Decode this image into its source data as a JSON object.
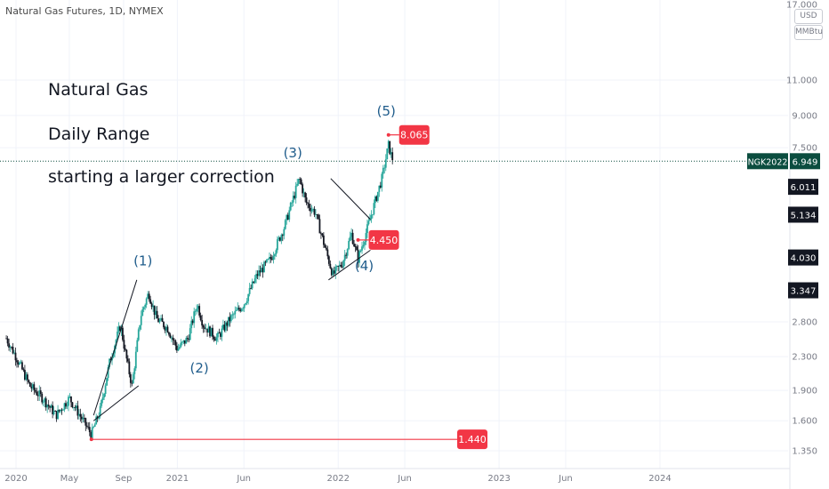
{
  "chart_data": {
    "type": "candlestick",
    "title": "Natural Gas Futures, 1D, NYMEX",
    "currency": "USD",
    "unit": "MMBtu",
    "y_scale": "log",
    "annotations": [
      "Natural Gas",
      "Daily Range",
      "starting a larger correction"
    ],
    "y_ticks": [
      17.0,
      11.0,
      9.0,
      7.5,
      2.8,
      2.3,
      1.9,
      1.6,
      1.35
    ],
    "y_tick_labels": [
      "17.000",
      "11.000",
      "9.000",
      "7.500",
      "2.800",
      "2.300",
      "1.900",
      "1.600",
      "1.350"
    ],
    "x_ticks": [
      {
        "label": "2020",
        "date": "2020-01-01"
      },
      {
        "label": "May",
        "date": "2020-05-01"
      },
      {
        "label": "Sep",
        "date": "2020-09-01"
      },
      {
        "label": "2021",
        "date": "2021-01-01"
      },
      {
        "label": "Jun",
        "date": "2021-06-01"
      },
      {
        "label": "2022",
        "date": "2022-01-01"
      },
      {
        "label": "Jun",
        "date": "2022-06-01"
      },
      {
        "label": "2023",
        "date": "2023-01-01"
      },
      {
        "label": "Jun",
        "date": "2023-06-01"
      },
      {
        "label": "2024",
        "date": "2024-01-01"
      }
    ],
    "price_path": [
      {
        "date": "2019-12-10",
        "price": 2.55
      },
      {
        "date": "2020-01-01",
        "price": 2.3
      },
      {
        "date": "2020-02-01",
        "price": 1.95
      },
      {
        "date": "2020-03-01",
        "price": 1.82
      },
      {
        "date": "2020-04-01",
        "price": 1.65
      },
      {
        "date": "2020-05-01",
        "price": 1.82
      },
      {
        "date": "2020-06-20",
        "price": 1.48
      },
      {
        "date": "2020-07-10",
        "price": 1.7
      },
      {
        "date": "2020-08-01",
        "price": 2.25
      },
      {
        "date": "2020-08-25",
        "price": 2.75
      },
      {
        "date": "2020-09-05",
        "price": 2.35
      },
      {
        "date": "2020-09-20",
        "price": 1.95
      },
      {
        "date": "2020-10-10",
        "price": 2.9
      },
      {
        "date": "2020-10-28",
        "price": 3.3
      },
      {
        "date": "2020-11-15",
        "price": 2.85
      },
      {
        "date": "2020-12-10",
        "price": 2.7
      },
      {
        "date": "2021-01-01",
        "price": 2.4
      },
      {
        "date": "2021-01-25",
        "price": 2.55
      },
      {
        "date": "2021-02-15",
        "price": 3.1
      },
      {
        "date": "2021-03-01",
        "price": 2.75
      },
      {
        "date": "2021-04-01",
        "price": 2.55
      },
      {
        "date": "2021-05-01",
        "price": 2.85
      },
      {
        "date": "2021-06-01",
        "price": 3.1
      },
      {
        "date": "2021-07-01",
        "price": 3.65
      },
      {
        "date": "2021-08-01",
        "price": 4.0
      },
      {
        "date": "2021-09-01",
        "price": 4.8
      },
      {
        "date": "2021-10-05",
        "price": 6.3
      },
      {
        "date": "2021-10-20",
        "price": 5.5
      },
      {
        "date": "2021-11-10",
        "price": 5.2
      },
      {
        "date": "2021-12-01",
        "price": 4.3
      },
      {
        "date": "2021-12-20",
        "price": 3.65
      },
      {
        "date": "2022-01-10",
        "price": 3.9
      },
      {
        "date": "2022-01-31",
        "price": 4.6
      },
      {
        "date": "2022-02-15",
        "price": 4.0
      },
      {
        "date": "2022-03-08",
        "price": 4.75
      },
      {
        "date": "2022-03-25",
        "price": 5.5
      },
      {
        "date": "2022-04-10",
        "price": 6.3
      },
      {
        "date": "2022-04-25",
        "price": 7.6
      },
      {
        "date": "2022-05-01",
        "price": 7.2
      },
      {
        "date": "2022-05-06",
        "price": 6.95
      }
    ],
    "price_labels": [
      {
        "date": "2022-04-25",
        "price": 8.065,
        "text": "8.065",
        "color": "#f23645"
      },
      {
        "date": "2022-02-15",
        "price": 4.45,
        "text": "4.450",
        "color": "#f23645"
      },
      {
        "date": "2020-06-20",
        "price": 1.44,
        "text": "1.440",
        "color": "#f23645"
      }
    ],
    "axis_badges": [
      {
        "price": 6.011,
        "text": "6.011",
        "color": "#131722"
      },
      {
        "price": 5.134,
        "text": "5.134",
        "color": "#131722"
      },
      {
        "price": 4.03,
        "text": "4.030",
        "color": "#131722"
      },
      {
        "price": 3.347,
        "text": "3.347",
        "color": "#131722"
      }
    ],
    "current_price": {
      "symbol": "NGK2022",
      "price": 6.949,
      "text": "6.949",
      "color": "#0b4d3f"
    },
    "wave_labels": [
      {
        "text": "(1)",
        "date": "2020-10-15",
        "price": 3.85
      },
      {
        "text": "(2)",
        "date": "2021-02-20",
        "price": 2.1
      },
      {
        "text": "(3)",
        "date": "2021-09-20",
        "price": 7.1
      },
      {
        "text": "(4)",
        "date": "2022-03-01",
        "price": 3.75
      },
      {
        "text": "(5)",
        "date": "2022-04-20",
        "price": 9.0
      }
    ],
    "trend_lines": [
      {
        "start": {
          "date": "2020-06-25",
          "price": 1.65
        },
        "end": {
          "date": "2020-10-01",
          "price": 3.55
        }
      },
      {
        "start": {
          "date": "2020-06-25",
          "price": 1.6
        },
        "end": {
          "date": "2020-10-05",
          "price": 1.95
        }
      },
      {
        "start": {
          "date": "2021-12-15",
          "price": 6.3
        },
        "end": {
          "date": "2022-03-15",
          "price": 5.0
        }
      },
      {
        "start": {
          "date": "2021-12-10",
          "price": 3.55
        },
        "end": {
          "date": "2022-03-15",
          "price": 4.2
        }
      }
    ],
    "colors": {
      "up": "#26a69a",
      "down": "#131722",
      "grid": "#f0f3fa",
      "axis_text": "#787b86",
      "wave": "#1f5c8b",
      "line": "#f23645"
    }
  }
}
